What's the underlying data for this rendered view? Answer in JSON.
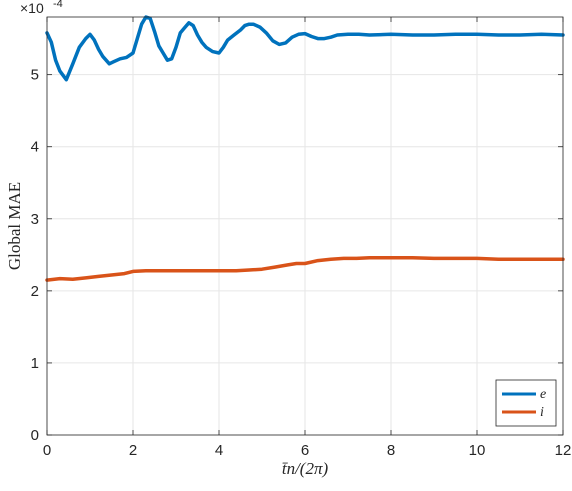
{
  "chart_data": {
    "type": "line",
    "xlabel": "t̄n/(2π)",
    "ylabel": "Global MAE",
    "y_exponent_label": "×10",
    "y_exponent_power": "-4",
    "xlim": [
      0,
      12
    ],
    "ylim": [
      0,
      5.8
    ],
    "x_ticks": [
      "0",
      "2",
      "4",
      "6",
      "8",
      "10",
      "12"
    ],
    "y_ticks": [
      "0",
      "1",
      "2",
      "3",
      "4",
      "5"
    ],
    "grid": true,
    "legend_position": "bottom-right",
    "series": [
      {
        "name": "e",
        "color": "#0072BD",
        "x": [
          0,
          0.1,
          0.2,
          0.3,
          0.45,
          0.6,
          0.75,
          0.9,
          1.0,
          1.1,
          1.2,
          1.3,
          1.45,
          1.55,
          1.7,
          1.85,
          2.0,
          2.1,
          2.2,
          2.3,
          2.4,
          2.5,
          2.6,
          2.7,
          2.8,
          2.9,
          3.0,
          3.1,
          3.2,
          3.3,
          3.4,
          3.5,
          3.6,
          3.7,
          3.85,
          4.0,
          4.1,
          4.2,
          4.35,
          4.5,
          4.6,
          4.7,
          4.8,
          4.95,
          5.1,
          5.25,
          5.4,
          5.55,
          5.7,
          5.85,
          6.0,
          6.15,
          6.3,
          6.45,
          6.6,
          6.75,
          7.0,
          7.25,
          7.5,
          8.0,
          8.5,
          9.0,
          9.5,
          10.0,
          10.5,
          11.0,
          11.5,
          12.0
        ],
        "values": [
          5.58,
          5.45,
          5.2,
          5.05,
          4.93,
          5.15,
          5.38,
          5.5,
          5.56,
          5.48,
          5.35,
          5.25,
          5.15,
          5.18,
          5.22,
          5.24,
          5.3,
          5.5,
          5.7,
          5.8,
          5.78,
          5.6,
          5.4,
          5.3,
          5.2,
          5.22,
          5.38,
          5.58,
          5.65,
          5.72,
          5.68,
          5.55,
          5.45,
          5.38,
          5.32,
          5.3,
          5.38,
          5.48,
          5.55,
          5.62,
          5.68,
          5.7,
          5.7,
          5.66,
          5.58,
          5.47,
          5.42,
          5.44,
          5.52,
          5.56,
          5.57,
          5.53,
          5.5,
          5.5,
          5.52,
          5.55,
          5.56,
          5.56,
          5.55,
          5.56,
          5.55,
          5.55,
          5.56,
          5.56,
          5.55,
          5.55,
          5.56,
          5.55
        ]
      },
      {
        "name": "i",
        "color": "#D95319",
        "x": [
          0,
          0.3,
          0.6,
          0.9,
          1.2,
          1.5,
          1.8,
          2.0,
          2.3,
          2.6,
          2.9,
          3.2,
          3.5,
          3.8,
          4.1,
          4.4,
          4.7,
          5.0,
          5.3,
          5.6,
          5.8,
          6.0,
          6.3,
          6.6,
          6.9,
          7.2,
          7.5,
          8.0,
          8.5,
          9.0,
          9.5,
          10.0,
          10.5,
          11.0,
          11.5,
          12.0
        ],
        "values": [
          2.15,
          2.17,
          2.16,
          2.18,
          2.2,
          2.22,
          2.24,
          2.27,
          2.28,
          2.28,
          2.28,
          2.28,
          2.28,
          2.28,
          2.28,
          2.28,
          2.29,
          2.3,
          2.33,
          2.36,
          2.38,
          2.38,
          2.42,
          2.44,
          2.45,
          2.45,
          2.46,
          2.46,
          2.46,
          2.45,
          2.45,
          2.45,
          2.44,
          2.44,
          2.44,
          2.44
        ]
      }
    ]
  }
}
